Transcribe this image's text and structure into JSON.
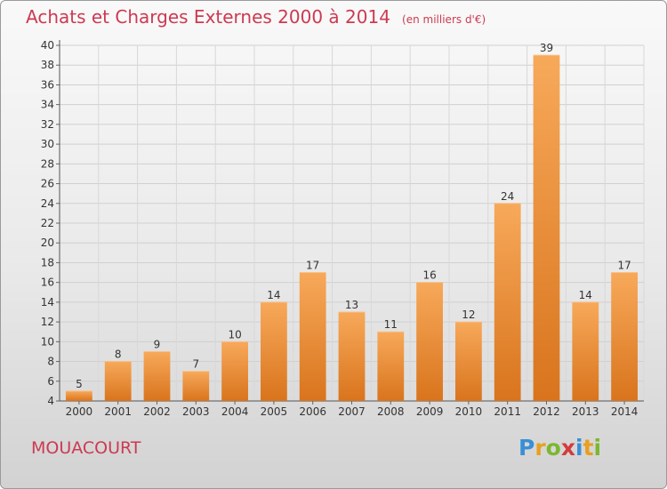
{
  "header": {
    "title": "Achats et Charges Externes 2000 à 2014",
    "subtitle": "(en milliers d'€)"
  },
  "commune": "MOUACOURT",
  "logo": {
    "text": "Proxiti",
    "colors": [
      "#3a8fd6",
      "#e8a020",
      "#7cb82f",
      "#d33c3c",
      "#3a8fd6",
      "#e8a020",
      "#7cb82f"
    ]
  },
  "colors": {
    "bar_light": "#f7a95a",
    "bar_dark": "#d9741d",
    "label": "#cc3a52"
  },
  "chart_data": {
    "type": "bar",
    "title": "Achats et Charges Externes 2000 à 2014",
    "categories": [
      "2000",
      "2001",
      "2002",
      "2003",
      "2004",
      "2005",
      "2006",
      "2007",
      "2008",
      "2009",
      "2010",
      "2011",
      "2012",
      "2013",
      "2014"
    ],
    "values": [
      5,
      8,
      9,
      7,
      10,
      14,
      17,
      13,
      11,
      16,
      12,
      24,
      39,
      14,
      17
    ],
    "ylim": [
      4,
      40
    ],
    "yticks": [
      4,
      6,
      8,
      10,
      12,
      14,
      16,
      18,
      20,
      22,
      24,
      26,
      28,
      30,
      32,
      34,
      36,
      38,
      40
    ],
    "grid": true,
    "data_labels": true,
    "xlabel": "",
    "ylabel": ""
  }
}
